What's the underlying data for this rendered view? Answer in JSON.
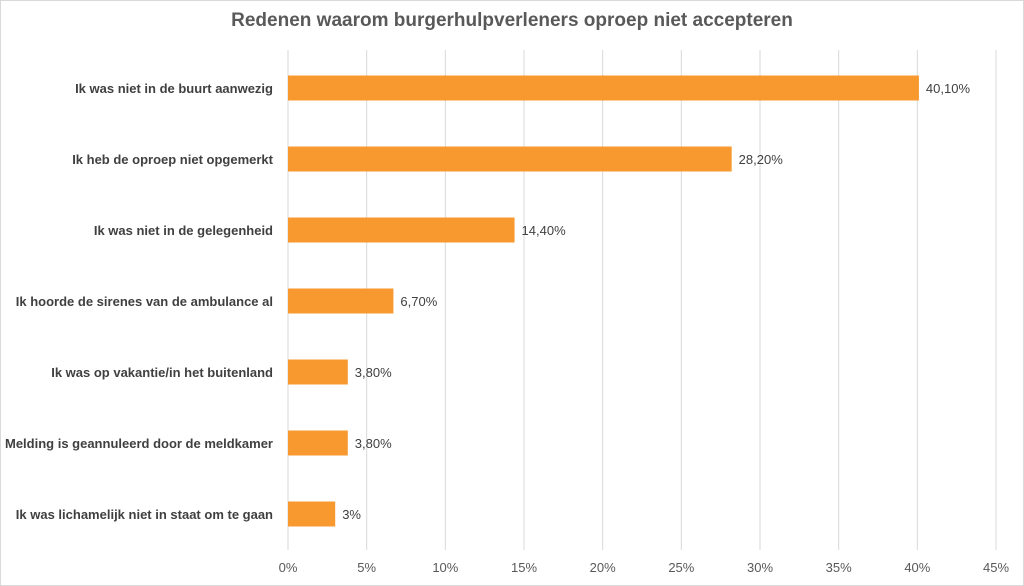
{
  "chart_data": {
    "type": "bar",
    "orientation": "horizontal",
    "title": "Redenen waarom burgerhulpverleners oproep niet accepteren",
    "categories": [
      "Ik was niet in de buurt aanwezig",
      "Ik heb de oproep niet opgemerkt",
      "Ik was niet in de gelegenheid",
      "Ik hoorde de sirenes van de ambulance al",
      "Ik was op vakantie/in het buitenland",
      "Melding is geannuleerd door de meldkamer",
      "Ik was lichamelijk niet in staat om te gaan"
    ],
    "values": [
      40.1,
      28.2,
      14.4,
      6.7,
      3.8,
      3.8,
      3.0
    ],
    "data_labels": [
      "40,10%",
      "28,20%",
      "14,40%",
      "6,70%",
      "3,80%",
      "3,80%",
      "3%"
    ],
    "x_ticks": [
      "0%",
      "5%",
      "10%",
      "15%",
      "20%",
      "25%",
      "30%",
      "35%",
      "40%",
      "45%"
    ],
    "xlim": [
      0,
      45
    ],
    "grid": true,
    "legend": "none",
    "bar_color": "#f7992f"
  }
}
